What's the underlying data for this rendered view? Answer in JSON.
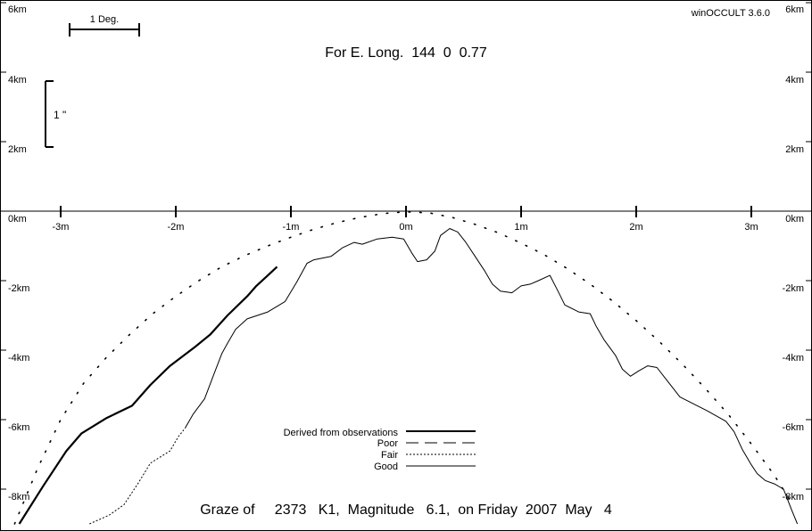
{
  "app_version": "winOCCULT 3.6.0",
  "longitude_text": "For E. Long.  144  0  0.77",
  "graze_text": "Graze of     2373   K1,  Magnitude   6.1,  on Friday  2007  May   4",
  "scale_bars": {
    "horizontal_label": "1 Deg.",
    "vertical_label": "1 \""
  },
  "legend": [
    {
      "label": "Derived from observations",
      "style": "thick"
    },
    {
      "label": "Poor",
      "style": "dashed"
    },
    {
      "label": "Fair",
      "style": "dotted"
    },
    {
      "label": "Good",
      "style": "thin"
    }
  ],
  "colors": {
    "background": "#ffffff",
    "ink": "#000000"
  },
  "chart_data": {
    "type": "line",
    "x_unit": "m",
    "y_unit": "km",
    "x_ticks": [
      "-3m",
      "-2m",
      "-1m",
      "0m",
      "1m",
      "2m",
      "3m"
    ],
    "x_tick_values": [
      -3,
      -2,
      -1,
      0,
      1,
      2,
      3
    ],
    "y_ticks": [
      "6km",
      "4km",
      "2km",
      "0km",
      "-2km",
      "-4km",
      "-6km",
      "-8km"
    ],
    "y_tick_values": [
      6,
      4,
      2,
      0,
      -2,
      -4,
      -6,
      -8
    ],
    "xlim": [
      -3.5,
      3.5
    ],
    "ylim": [
      -9.0,
      6.1
    ],
    "series": [
      {
        "name": "Derived from observations",
        "style": "thick",
        "points": [
          [
            -3.36,
            -9.0
          ],
          [
            -3.15,
            -7.9
          ],
          [
            -2.95,
            -6.9
          ],
          [
            -2.82,
            -6.4
          ],
          [
            -2.6,
            -5.95
          ],
          [
            -2.38,
            -5.6
          ],
          [
            -2.22,
            -5.0
          ],
          [
            -2.05,
            -4.45
          ],
          [
            -1.83,
            -3.9
          ],
          [
            -1.7,
            -3.55
          ],
          [
            -1.55,
            -3.0
          ],
          [
            -1.38,
            -2.45
          ],
          [
            -1.3,
            -2.15
          ],
          [
            -1.2,
            -1.85
          ],
          [
            -1.12,
            -1.6
          ]
        ]
      },
      {
        "name": "Fair",
        "style": "dotted",
        "points": [
          [
            -2.75,
            -9.0
          ],
          [
            -2.58,
            -8.75
          ],
          [
            -2.45,
            -8.45
          ],
          [
            -2.33,
            -7.85
          ],
          [
            -2.22,
            -7.25
          ],
          [
            -2.05,
            -6.9
          ],
          [
            -1.98,
            -6.5
          ],
          [
            -1.92,
            -6.25
          ]
        ]
      },
      {
        "name": "Good",
        "style": "thin",
        "points": [
          [
            -1.92,
            -6.25
          ],
          [
            -1.85,
            -5.85
          ],
          [
            -1.75,
            -5.4
          ],
          [
            -1.67,
            -4.7
          ],
          [
            -1.6,
            -4.1
          ],
          [
            -1.55,
            -3.8
          ],
          [
            -1.48,
            -3.4
          ],
          [
            -1.38,
            -3.1
          ],
          [
            -1.2,
            -2.9
          ],
          [
            -1.05,
            -2.6
          ],
          [
            -0.95,
            -2.05
          ],
          [
            -0.86,
            -1.5
          ],
          [
            -0.8,
            -1.4
          ],
          [
            -0.65,
            -1.3
          ],
          [
            -0.55,
            -1.05
          ],
          [
            -0.45,
            -0.9
          ],
          [
            -0.38,
            -0.95
          ],
          [
            -0.25,
            -0.8
          ],
          [
            -0.12,
            -0.75
          ],
          [
            -0.02,
            -0.8
          ],
          [
            0.05,
            -1.2
          ],
          [
            0.1,
            -1.45
          ],
          [
            0.18,
            -1.4
          ],
          [
            0.25,
            -1.15
          ],
          [
            0.3,
            -0.7
          ],
          [
            0.38,
            -0.5
          ],
          [
            0.45,
            -0.6
          ],
          [
            0.52,
            -0.9
          ],
          [
            0.6,
            -1.3
          ],
          [
            0.68,
            -1.7
          ],
          [
            0.75,
            -2.1
          ],
          [
            0.82,
            -2.3
          ],
          [
            0.92,
            -2.35
          ],
          [
            1.0,
            -2.15
          ],
          [
            1.08,
            -2.1
          ],
          [
            1.15,
            -2.0
          ],
          [
            1.25,
            -1.85
          ],
          [
            1.32,
            -2.3
          ],
          [
            1.38,
            -2.7
          ],
          [
            1.5,
            -2.9
          ],
          [
            1.6,
            -2.95
          ],
          [
            1.65,
            -3.3
          ],
          [
            1.72,
            -3.7
          ],
          [
            1.82,
            -4.15
          ],
          [
            1.88,
            -4.55
          ],
          [
            1.95,
            -4.75
          ],
          [
            2.02,
            -4.6
          ],
          [
            2.1,
            -4.45
          ],
          [
            2.18,
            -4.5
          ],
          [
            2.25,
            -4.8
          ],
          [
            2.38,
            -5.35
          ],
          [
            2.5,
            -5.55
          ],
          [
            2.62,
            -5.75
          ],
          [
            2.78,
            -6.05
          ],
          [
            2.85,
            -6.35
          ],
          [
            2.92,
            -6.85
          ],
          [
            3.0,
            -7.3
          ],
          [
            3.05,
            -7.55
          ],
          [
            3.12,
            -7.75
          ],
          [
            3.2,
            -7.85
          ],
          [
            3.28,
            -8.0
          ],
          [
            3.35,
            -8.6
          ],
          [
            3.4,
            -9.0
          ]
        ]
      },
      {
        "name": "Limb path",
        "style": "sparse-dotted",
        "points": [
          [
            -3.4,
            -9.0
          ],
          [
            -3.2,
            -7.4
          ],
          [
            -3.0,
            -6.0
          ],
          [
            -2.8,
            -4.95
          ],
          [
            -2.6,
            -4.2
          ],
          [
            -2.4,
            -3.55
          ],
          [
            -2.2,
            -2.95
          ],
          [
            -2.0,
            -2.45
          ],
          [
            -1.8,
            -2.0
          ],
          [
            -1.6,
            -1.6
          ],
          [
            -1.4,
            -1.28
          ],
          [
            -1.2,
            -1.0
          ],
          [
            -1.0,
            -0.75
          ],
          [
            -0.8,
            -0.52
          ],
          [
            -0.6,
            -0.33
          ],
          [
            -0.4,
            -0.18
          ],
          [
            -0.2,
            -0.07
          ],
          [
            0.0,
            -0.02
          ],
          [
            0.2,
            -0.05
          ],
          [
            0.4,
            -0.18
          ],
          [
            0.6,
            -0.38
          ],
          [
            0.8,
            -0.62
          ],
          [
            1.0,
            -0.92
          ],
          [
            1.2,
            -1.25
          ],
          [
            1.4,
            -1.65
          ],
          [
            1.6,
            -2.1
          ],
          [
            1.8,
            -2.6
          ],
          [
            2.0,
            -3.15
          ],
          [
            2.2,
            -3.75
          ],
          [
            2.4,
            -4.4
          ],
          [
            2.6,
            -5.1
          ],
          [
            2.8,
            -5.85
          ],
          [
            3.0,
            -6.7
          ],
          [
            3.2,
            -7.6
          ],
          [
            3.35,
            -8.4
          ]
        ]
      }
    ]
  }
}
